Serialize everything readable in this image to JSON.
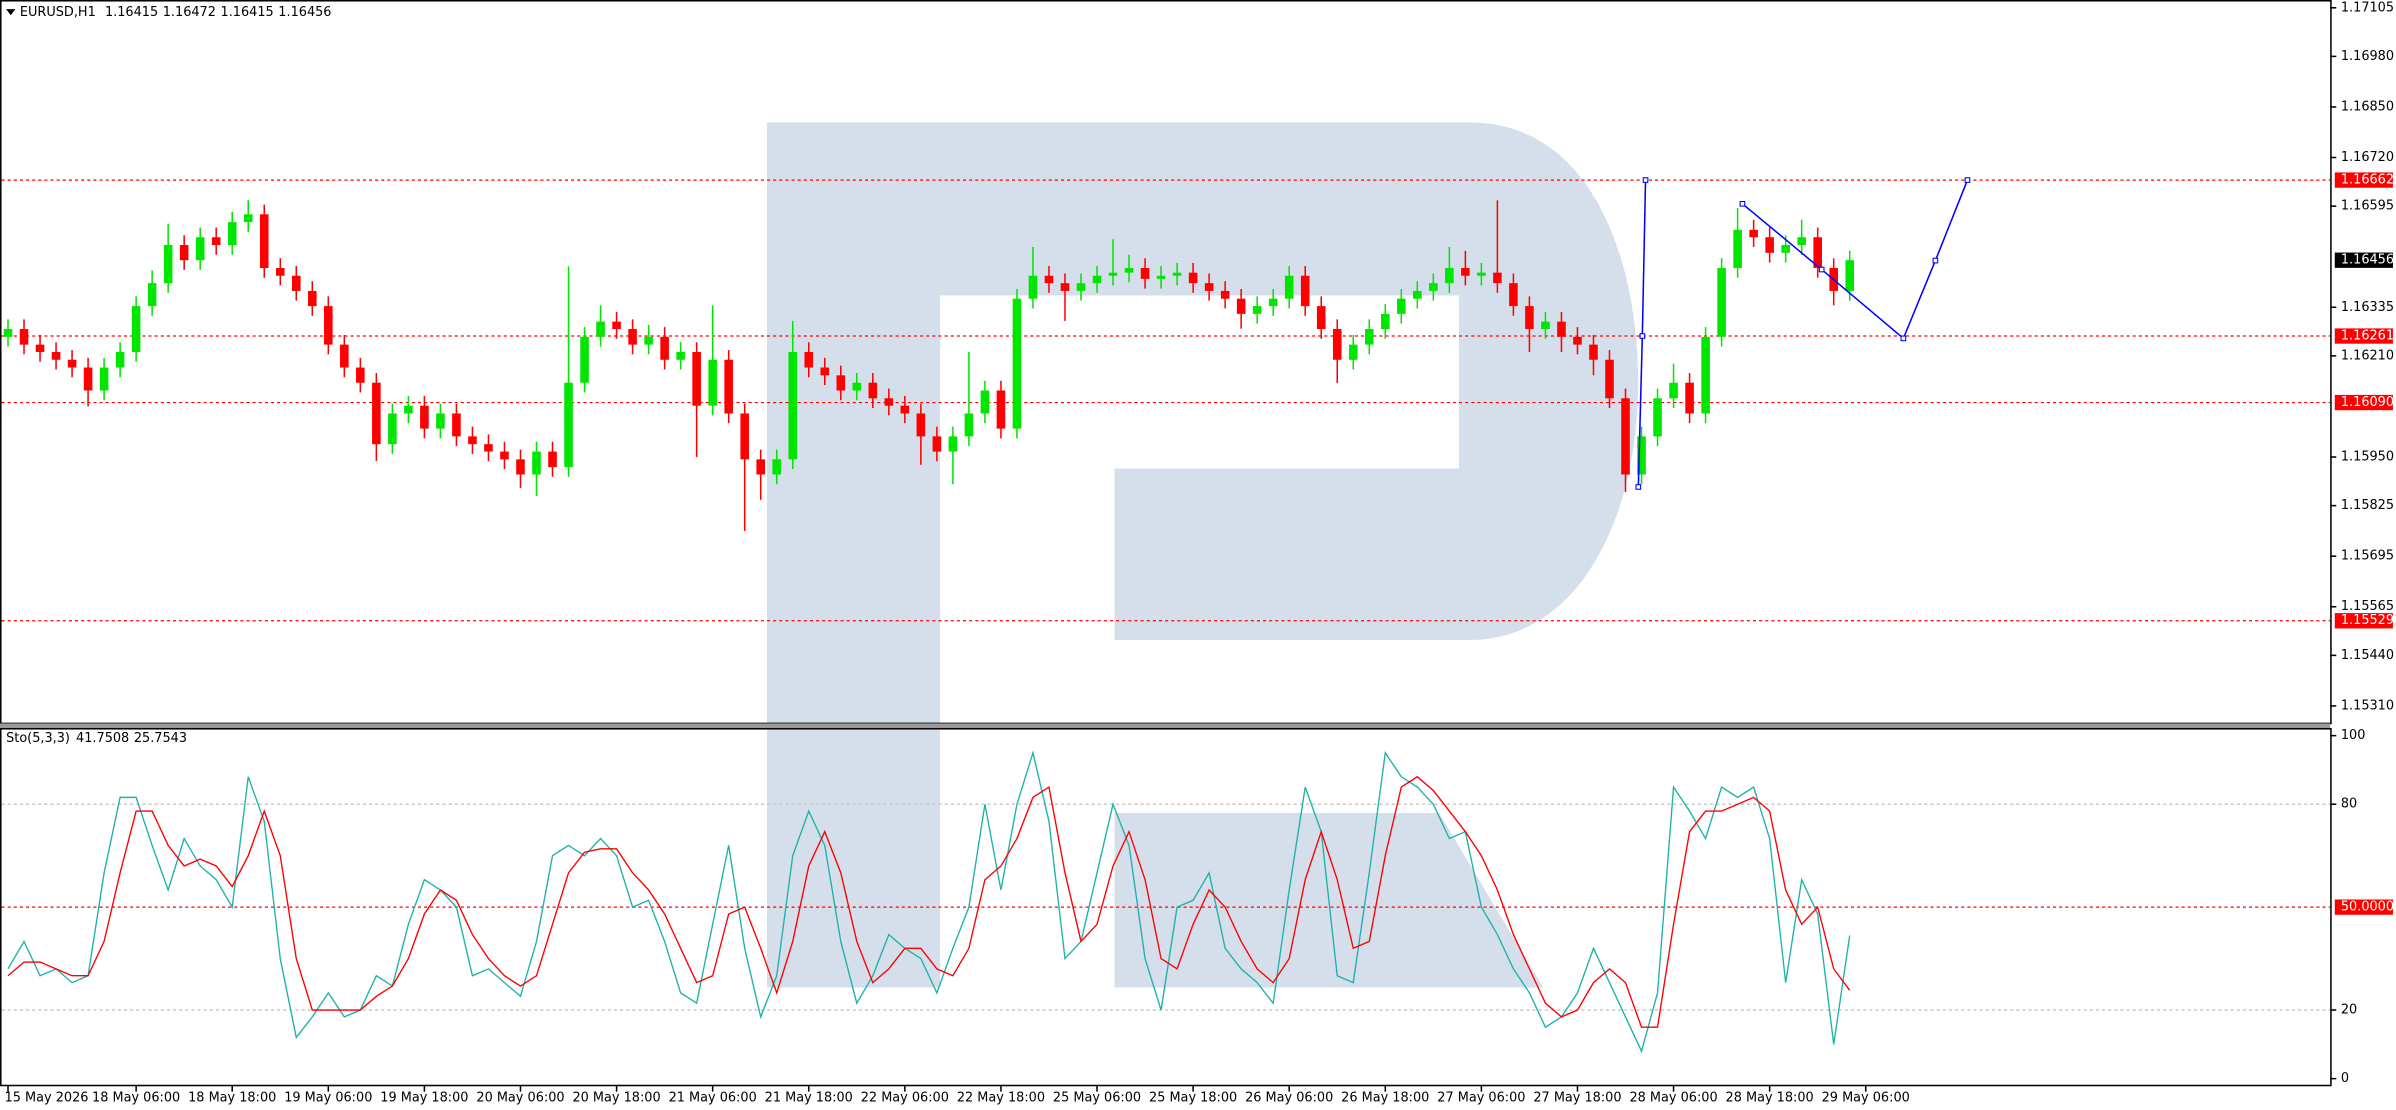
{
  "chart_data": [
    {
      "type": "candlestick",
      "title": "EURUSD,H1",
      "header_values": [
        1.16415,
        1.16472,
        1.16415,
        1.16456
      ],
      "up_color": "#00e600",
      "down_color": "#ff0000",
      "level_color": "#ff0000",
      "last_color": "#000000",
      "xlim": [
        -1,
        290
      ],
      "ylim": [
        1.15267,
        1.17125
      ],
      "yticks": [
        {
          "value": 1.17105,
          "label": "1.17105"
        },
        {
          "value": 1.1698,
          "label": "1.16980"
        },
        {
          "value": 1.1685,
          "label": "1.16850"
        },
        {
          "value": 1.1672,
          "label": "1.16720"
        },
        {
          "value": 1.16595,
          "label": "1.16595"
        },
        {
          "value": 1.16335,
          "label": "1.16335"
        },
        {
          "value": 1.1621,
          "label": "1.16210"
        },
        {
          "value": 1.1595,
          "label": "1.15950"
        },
        {
          "value": 1.15825,
          "label": "1.15825"
        },
        {
          "value": 1.15695,
          "label": "1.15695"
        },
        {
          "value": 1.15565,
          "label": "1.15565"
        },
        {
          "value": 1.1544,
          "label": "1.15440"
        },
        {
          "value": 1.1531,
          "label": "1.15310"
        }
      ],
      "levels": [
        {
          "value": 1.16662,
          "label": "1.16662"
        },
        {
          "value": 1.16261,
          "label": "1.16261"
        },
        {
          "value": 1.1609,
          "label": "1.16090"
        },
        {
          "value": 1.15529,
          "label": "1.15529"
        }
      ],
      "forecast": [
        {
          "color": "#0000ff",
          "x": [
            203.6,
            204.1,
            204.5
          ],
          "y": [
            1.15873,
            1.16261,
            1.16662
          ]
        },
        {
          "color": "#0000ff",
          "x": [
            216.6,
            226.5,
            236.7,
            240.7,
            244.7
          ],
          "y": [
            1.16601,
            1.16432,
            1.16255,
            1.16455,
            1.16662
          ]
        }
      ],
      "x": [
        0,
        2,
        4,
        6,
        8,
        10,
        12,
        14,
        16,
        18,
        20,
        22,
        24,
        26,
        28,
        30,
        32,
        34,
        36,
        38,
        40,
        42,
        44,
        46,
        48,
        50,
        52,
        54,
        56,
        58,
        60,
        62,
        64,
        66,
        68,
        70,
        72,
        74,
        76,
        78,
        80,
        82,
        84,
        86,
        88,
        90,
        92,
        94,
        96,
        98,
        100,
        102,
        104,
        106,
        108,
        110,
        112,
        114,
        116,
        118,
        120,
        122,
        124,
        126,
        128,
        130,
        132,
        134,
        136,
        138,
        140,
        142,
        144,
        146,
        148,
        150,
        152,
        154,
        156,
        158,
        160,
        162,
        164,
        166,
        168,
        170,
        172,
        174,
        176,
        178,
        180,
        182,
        184,
        186,
        188,
        190,
        192,
        194,
        196,
        198,
        200,
        202,
        204,
        206,
        208,
        210,
        212,
        214,
        216,
        218,
        220,
        222,
        224,
        226,
        228,
        230
      ],
      "open": [
        1.16259,
        1.16279,
        1.16239,
        1.1622,
        1.162,
        1.1618,
        1.16121,
        1.1618,
        1.1622,
        1.16338,
        1.16397,
        1.16495,
        1.16456,
        1.16515,
        1.16495,
        1.16554,
        1.16574,
        1.16436,
        1.16416,
        1.16377,
        1.16338,
        1.16239,
        1.1618,
        1.16141,
        1.15983,
        1.16062,
        1.16082,
        1.16023,
        1.16062,
        1.16003,
        1.15983,
        1.15964,
        1.15944,
        1.15905,
        1.15964,
        1.15924,
        1.16141,
        1.16259,
        1.16298,
        1.16279,
        1.16239,
        1.16259,
        1.162,
        1.1622,
        1.16082,
        1.162,
        1.16062,
        1.15944,
        1.15905,
        1.15944,
        1.1622,
        1.1618,
        1.1616,
        1.16121,
        1.16141,
        1.16101,
        1.16082,
        1.16062,
        1.16003,
        1.15964,
        1.16003,
        1.16062,
        1.16121,
        1.16023,
        1.16357,
        1.16416,
        1.16397,
        1.16377,
        1.16397,
        1.16416,
        1.16424,
        1.16436,
        1.16408,
        1.16416,
        1.16424,
        1.16397,
        1.16377,
        1.16357,
        1.16318,
        1.16338,
        1.16357,
        1.16416,
        1.16338,
        1.16279,
        1.162,
        1.16239,
        1.16279,
        1.16318,
        1.16357,
        1.16377,
        1.16397,
        1.16436,
        1.16416,
        1.16424,
        1.16397,
        1.16338,
        1.16279,
        1.16298,
        1.16259,
        1.16239,
        1.162,
        1.16101,
        1.15905,
        1.16003,
        1.16101,
        1.16141,
        1.16062,
        1.16259,
        1.16436,
        1.16534,
        1.16515,
        1.16475,
        1.16495,
        1.16515,
        1.16436,
        1.16377
      ],
      "high": [
        1.16304,
        1.16304,
        1.16264,
        1.16245,
        1.16225,
        1.16205,
        1.16205,
        1.16245,
        1.16363,
        1.1643,
        1.1655,
        1.1652,
        1.1654,
        1.1654,
        1.1658,
        1.1661,
        1.16599,
        1.16461,
        1.16441,
        1.16402,
        1.16363,
        1.16264,
        1.16205,
        1.16166,
        1.16087,
        1.16107,
        1.16107,
        1.16087,
        1.16087,
        1.16028,
        1.16008,
        1.15989,
        1.15969,
        1.15989,
        1.15989,
        1.1644,
        1.16284,
        1.1634,
        1.16323,
        1.16304,
        1.1629,
        1.16284,
        1.16245,
        1.16245,
        1.1634,
        1.16225,
        1.16087,
        1.15969,
        1.15969,
        1.163,
        1.16245,
        1.16205,
        1.16185,
        1.16166,
        1.16166,
        1.16126,
        1.16107,
        1.16087,
        1.16028,
        1.16028,
        1.1622,
        1.16146,
        1.16146,
        1.16382,
        1.1649,
        1.16441,
        1.16422,
        1.16422,
        1.16441,
        1.1651,
        1.1647,
        1.16461,
        1.16441,
        1.16449,
        1.16449,
        1.16422,
        1.16402,
        1.16382,
        1.16363,
        1.16382,
        1.16441,
        1.16441,
        1.16363,
        1.16304,
        1.16264,
        1.16304,
        1.16343,
        1.16382,
        1.16402,
        1.16422,
        1.1649,
        1.1648,
        1.16449,
        1.1661,
        1.16422,
        1.16363,
        1.16323,
        1.16323,
        1.16284,
        1.16264,
        1.16225,
        1.16126,
        1.16028,
        1.16126,
        1.1619,
        1.16166,
        1.16284,
        1.16461,
        1.1659,
        1.1656,
        1.1654,
        1.1652,
        1.1656,
        1.1654,
        1.16461,
        1.16481
      ],
      "low": [
        1.16234,
        1.16214,
        1.16195,
        1.16175,
        1.16155,
        1.1608,
        1.16096,
        1.16155,
        1.16195,
        1.16313,
        1.16372,
        1.16431,
        1.16431,
        1.1647,
        1.1647,
        1.16529,
        1.16411,
        1.16391,
        1.16352,
        1.16313,
        1.16214,
        1.16155,
        1.16116,
        1.1594,
        1.15958,
        1.16037,
        1.15998,
        1.15998,
        1.15978,
        1.15958,
        1.15939,
        1.15919,
        1.1587,
        1.1585,
        1.15899,
        1.15899,
        1.16116,
        1.16234,
        1.16254,
        1.16214,
        1.16214,
        1.16175,
        1.16175,
        1.1595,
        1.16057,
        1.16037,
        1.1576,
        1.1584,
        1.1588,
        1.15919,
        1.16155,
        1.16135,
        1.16096,
        1.16096,
        1.16076,
        1.16057,
        1.16037,
        1.1593,
        1.15939,
        1.1588,
        1.15978,
        1.16037,
        1.15998,
        1.15998,
        1.16332,
        1.16372,
        1.163,
        1.16352,
        1.16372,
        1.16391,
        1.16399,
        1.16383,
        1.16383,
        1.16391,
        1.16372,
        1.16352,
        1.16332,
        1.1628,
        1.16293,
        1.16313,
        1.16332,
        1.16313,
        1.16254,
        1.1614,
        1.16175,
        1.16214,
        1.16254,
        1.16293,
        1.16332,
        1.16352,
        1.16372,
        1.16391,
        1.16391,
        1.16372,
        1.16313,
        1.1622,
        1.16254,
        1.1622,
        1.16214,
        1.1616,
        1.16076,
        1.1586,
        1.1588,
        1.15978,
        1.16076,
        1.16037,
        1.16037,
        1.16234,
        1.16411,
        1.1649,
        1.1645,
        1.1645,
        1.1647,
        1.16411,
        1.1634,
        1.16352
      ],
      "close": [
        1.16279,
        1.16239,
        1.1622,
        1.162,
        1.1618,
        1.16121,
        1.1618,
        1.1622,
        1.16338,
        1.16397,
        1.16495,
        1.16456,
        1.16515,
        1.16495,
        1.16554,
        1.16574,
        1.16436,
        1.16416,
        1.16377,
        1.16338,
        1.16239,
        1.1618,
        1.16141,
        1.15983,
        1.16062,
        1.16082,
        1.16023,
        1.16062,
        1.16003,
        1.15983,
        1.15964,
        1.15944,
        1.15905,
        1.15964,
        1.15924,
        1.16141,
        1.16259,
        1.16298,
        1.16279,
        1.16239,
        1.16259,
        1.162,
        1.1622,
        1.16082,
        1.162,
        1.16062,
        1.15944,
        1.15905,
        1.15944,
        1.1622,
        1.1618,
        1.1616,
        1.16121,
        1.16141,
        1.16101,
        1.16082,
        1.16062,
        1.16003,
        1.15964,
        1.16003,
        1.16062,
        1.16121,
        1.16023,
        1.16357,
        1.16416,
        1.16397,
        1.16377,
        1.16397,
        1.16416,
        1.16424,
        1.16436,
        1.16408,
        1.16416,
        1.16424,
        1.16397,
        1.16377,
        1.16357,
        1.16318,
        1.16338,
        1.16357,
        1.16416,
        1.16338,
        1.16279,
        1.162,
        1.16239,
        1.16279,
        1.16318,
        1.16357,
        1.16377,
        1.16397,
        1.16436,
        1.16416,
        1.16424,
        1.16397,
        1.16338,
        1.16279,
        1.16298,
        1.16259,
        1.16239,
        1.162,
        1.16101,
        1.15905,
        1.16003,
        1.16101,
        1.16141,
        1.16062,
        1.16259,
        1.16436,
        1.16534,
        1.16515,
        1.16475,
        1.16495,
        1.16515,
        1.16436,
        1.16377,
        1.16456
      ]
    },
    {
      "type": "line",
      "title": "Sto(5,3,3)",
      "level_color": "#ff0000",
      "grid_levels": [
        80,
        20
      ],
      "xlim": [
        -1,
        290
      ],
      "ylim": [
        -2,
        102
      ],
      "yticks": [
        100,
        80,
        20,
        0
      ],
      "levels": [
        {
          "value": 50,
          "label": "50.0000"
        }
      ],
      "xticks": [
        {
          "value": 0,
          "label": "15 May 2026"
        },
        {
          "value": 16,
          "label": "18 May 06:00"
        },
        {
          "value": 28,
          "label": "18 May 18:00"
        },
        {
          "value": 40,
          "label": "19 May 06:00"
        },
        {
          "value": 52,
          "label": "19 May 18:00"
        },
        {
          "value": 64,
          "label": "20 May 06:00"
        },
        {
          "value": 76,
          "label": "20 May 18:00"
        },
        {
          "value": 88,
          "label": "21 May 06:00"
        },
        {
          "value": 100,
          "label": "21 May 18:00"
        },
        {
          "value": 112,
          "label": "22 May 06:00"
        },
        {
          "value": 124,
          "label": "22 May 18:00"
        },
        {
          "value": 136,
          "label": "25 May 06:00"
        },
        {
          "value": 148,
          "label": "25 May 18:00"
        },
        {
          "value": 160,
          "label": "26 May 06:00"
        },
        {
          "value": 172,
          "label": "26 May 18:00"
        },
        {
          "value": 184,
          "label": "27 May 06:00"
        },
        {
          "value": 196,
          "label": "27 May 18:00"
        },
        {
          "value": 208,
          "label": "28 May 06:00"
        },
        {
          "value": 220,
          "label": "28 May 18:00"
        },
        {
          "value": 232,
          "label": "29 May 06:00"
        }
      ],
      "x": [
        0,
        2,
        4,
        6,
        8,
        10,
        12,
        14,
        16,
        18,
        20,
        22,
        24,
        26,
        28,
        30,
        32,
        34,
        36,
        38,
        40,
        42,
        44,
        46,
        48,
        50,
        52,
        54,
        56,
        58,
        60,
        62,
        64,
        66,
        68,
        70,
        72,
        74,
        76,
        78,
        80,
        82,
        84,
        86,
        88,
        90,
        92,
        94,
        96,
        98,
        100,
        102,
        104,
        106,
        108,
        110,
        112,
        114,
        116,
        118,
        120,
        122,
        124,
        126,
        128,
        130,
        132,
        134,
        136,
        138,
        140,
        142,
        144,
        146,
        148,
        150,
        152,
        154,
        156,
        158,
        160,
        162,
        164,
        166,
        168,
        170,
        172,
        174,
        176,
        178,
        180,
        182,
        184,
        186,
        188,
        190,
        192,
        194,
        196,
        198,
        200,
        202,
        204,
        206,
        208,
        210,
        212,
        214,
        216,
        218,
        220,
        222,
        224,
        226,
        228,
        230
      ],
      "series": [
        {
          "color": "#20b2aa",
          "values": [
            32,
            40,
            30,
            32,
            28,
            30,
            60,
            82,
            82,
            68,
            55,
            70,
            62,
            58,
            50,
            88,
            75,
            35,
            12,
            18,
            25,
            18,
            20,
            30,
            27,
            45,
            58,
            55,
            50,
            30,
            32,
            28,
            24,
            40,
            65,
            68,
            65,
            70,
            65,
            50,
            52,
            40,
            25,
            22,
            45,
            68,
            38,
            18,
            30,
            65,
            78,
            68,
            40,
            22,
            30,
            42,
            38,
            35,
            25,
            38,
            50,
            80,
            55,
            80,
            95,
            75,
            35,
            40,
            60,
            80,
            68,
            35,
            20,
            50,
            52,
            60,
            38,
            32,
            28,
            22,
            55,
            85,
            72,
            30,
            28,
            60,
            95,
            88,
            85,
            80,
            70,
            72,
            50,
            42,
            32,
            25,
            15,
            18,
            25,
            38,
            28,
            18,
            8,
            25,
            85,
            78,
            70,
            85,
            82,
            85,
            70,
            28,
            58,
            48,
            10,
            41.7508
          ]
        },
        {
          "color": "#ff0000",
          "values": [
            30,
            34,
            34,
            32,
            30,
            30,
            40,
            60,
            78,
            78,
            68,
            62,
            64,
            62,
            56,
            65,
            78,
            65,
            35,
            20,
            20,
            20,
            20,
            24,
            27,
            35,
            48,
            55,
            52,
            42,
            35,
            30,
            27,
            30,
            45,
            60,
            66,
            67,
            67,
            60,
            55,
            48,
            38,
            28,
            30,
            48,
            50,
            38,
            25,
            40,
            62,
            72,
            60,
            40,
            28,
            32,
            38,
            38,
            32,
            30,
            38,
            58,
            62,
            70,
            82,
            85,
            60,
            40,
            45,
            62,
            72,
            58,
            35,
            32,
            45,
            55,
            50,
            40,
            32,
            28,
            35,
            58,
            72,
            58,
            38,
            40,
            65,
            85,
            88,
            84,
            78,
            72,
            65,
            55,
            42,
            32,
            22,
            18,
            20,
            28,
            32,
            28,
            15,
            15,
            45,
            72,
            78,
            78,
            80,
            82,
            78,
            55,
            45,
            50,
            32,
            25.7543
          ]
        }
      ]
    }
  ]
}
